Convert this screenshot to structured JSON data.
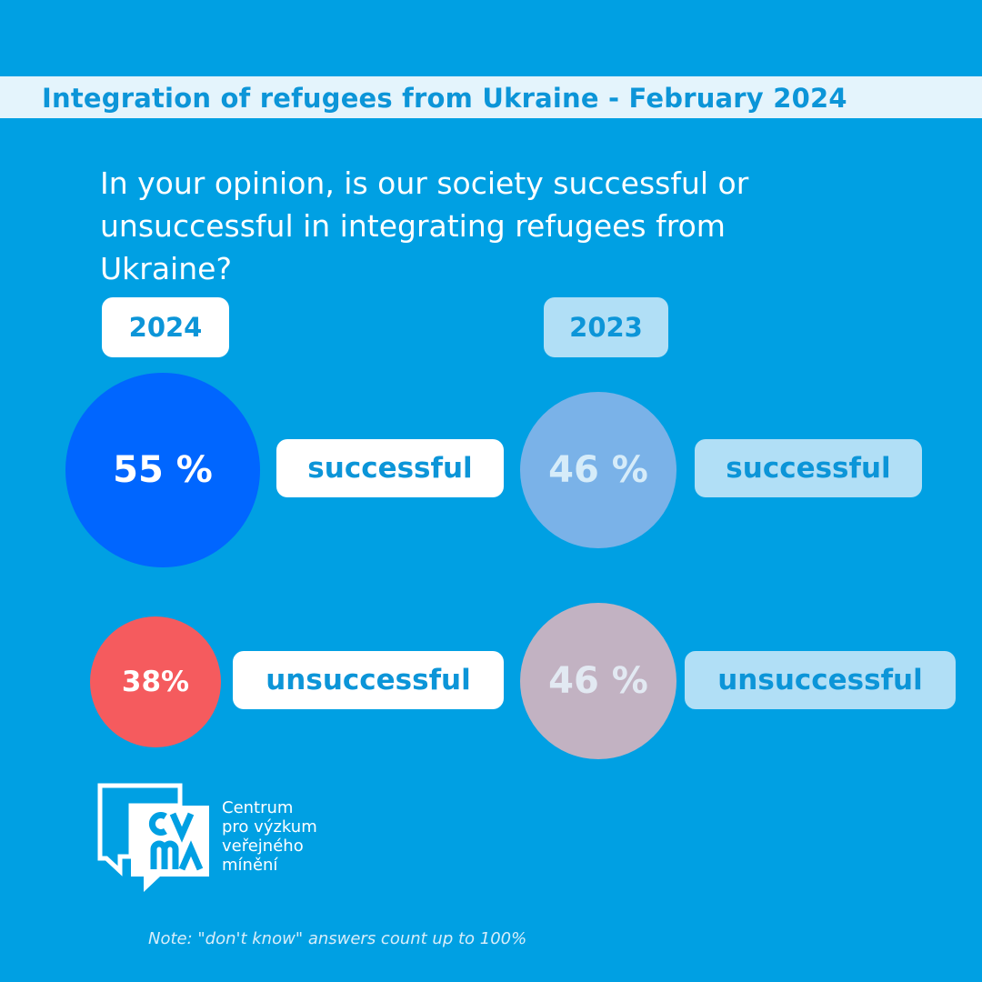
{
  "header": {
    "title": "Integration of refugees from Ukraine - February 2024"
  },
  "question": "In your opinion, is our society successful or unsuccessful in integrating refugees from Ukraine?",
  "colors": {
    "background": "#00A0E3",
    "successful_2024": "#0066FF",
    "unsuccessful_2024": "#F55B5E",
    "successful_2023": "#7AB2E8",
    "unsuccessful_2023": "#C2B2C2",
    "accent_text": "#0C95D8"
  },
  "chart_data": {
    "type": "table",
    "categories": [
      "successful",
      "unsuccessful"
    ],
    "series": [
      {
        "name": "2024",
        "values": [
          55,
          38
        ],
        "labels": [
          "55 %",
          "38%"
        ]
      },
      {
        "name": "2023",
        "values": [
          46,
          46
        ],
        "labels": [
          "46 %",
          "46 %"
        ]
      }
    ],
    "unit": "%"
  },
  "org": {
    "logo_text": "CVVM",
    "lines": [
      "Centrum",
      "pro výzkum",
      "veřejného",
      "mínění"
    ]
  },
  "note": "Note: \"don't know\" answers count up to 100%"
}
